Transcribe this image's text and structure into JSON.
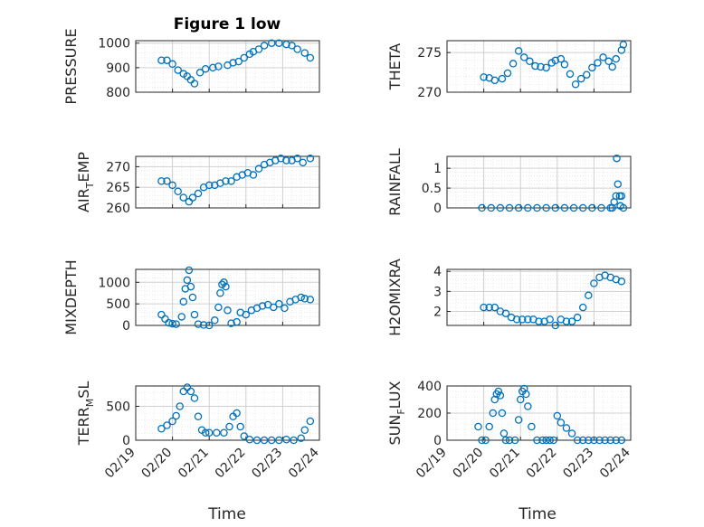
{
  "figure": {
    "title": "Figure 1 low"
  },
  "colors": {
    "marker": "#0072BD",
    "axis": "#262626",
    "grid": "#d0d0d0",
    "minor_grid": "#e6e6e6"
  },
  "chart_data": [
    {
      "type": "scatter",
      "ylabel": "PRESSURE",
      "yticks": [
        "800",
        "900",
        "1000"
      ],
      "ylim": [
        800,
        1010
      ],
      "xlim": [
        "02/19",
        "02/24"
      ],
      "xticks": [
        "02/19",
        "02/20",
        "02/21",
        "02/22",
        "02/23",
        "02/24"
      ],
      "grid": true,
      "x_days": [
        19.7,
        19.85,
        20.0,
        20.15,
        20.3,
        20.4,
        20.5,
        20.6,
        20.75,
        20.9,
        21.1,
        21.25,
        21.5,
        21.65,
        21.8,
        21.95,
        22.1,
        22.2,
        22.35,
        22.5,
        22.7,
        22.9,
        23.1,
        23.25,
        23.4,
        23.6,
        23.75
      ],
      "y": [
        930,
        930,
        915,
        890,
        875,
        865,
        850,
        835,
        880,
        895,
        900,
        905,
        910,
        920,
        925,
        940,
        955,
        965,
        975,
        990,
        1000,
        1000,
        995,
        990,
        975,
        960,
        940
      ]
    },
    {
      "type": "scatter",
      "ylabel": "THETA",
      "yticks": [
        "270",
        "275"
      ],
      "ylim": [
        270,
        276.5
      ],
      "xlim": [
        "02/19",
        "02/24"
      ],
      "xticks": [
        "02/19",
        "02/20",
        "02/21",
        "02/22",
        "02/23",
        "02/24"
      ],
      "grid": true,
      "x_days": [
        20.0,
        20.15,
        20.3,
        20.5,
        20.65,
        20.8,
        20.95,
        21.1,
        21.25,
        21.4,
        21.55,
        21.7,
        21.85,
        21.95,
        22.1,
        22.2,
        22.35,
        22.5,
        22.65,
        22.8,
        22.95,
        23.1,
        23.25,
        23.4,
        23.5,
        23.6,
        23.75,
        23.8
      ],
      "y": [
        271.9,
        271.8,
        271.5,
        271.7,
        272.4,
        273.6,
        275.2,
        274.4,
        273.9,
        273.3,
        273.2,
        273.1,
        273.7,
        274.0,
        274.2,
        273.5,
        272.3,
        271.0,
        271.7,
        272.2,
        273.1,
        273.7,
        274.4,
        273.9,
        273.2,
        274.2,
        275.3,
        276.0
      ]
    },
    {
      "type": "scatter",
      "ylabel": "AIR",
      "ylabel_sub": "T",
      "ylabel_rest": "EMP",
      "yticks": [
        "260",
        "265",
        "270"
      ],
      "ylim": [
        260,
        272.5
      ],
      "xlim": [
        "02/19",
        "02/24"
      ],
      "xticks": [
        "02/19",
        "02/20",
        "02/21",
        "02/22",
        "02/23",
        "02/24"
      ],
      "grid": true,
      "x_days": [
        19.7,
        19.85,
        20.0,
        20.15,
        20.3,
        20.45,
        20.55,
        20.7,
        20.85,
        21.0,
        21.15,
        21.3,
        21.45,
        21.6,
        21.75,
        21.9,
        22.05,
        22.2,
        22.35,
        22.5,
        22.65,
        22.8,
        22.95,
        23.1,
        23.25,
        23.4,
        23.55,
        23.75
      ],
      "y": [
        266.5,
        266.5,
        265.5,
        264.0,
        262.5,
        261.5,
        262.5,
        263.5,
        265.0,
        265.5,
        265.5,
        266.0,
        266.5,
        266.5,
        267.5,
        268.0,
        268.5,
        268.0,
        269.5,
        270.5,
        271.0,
        271.5,
        272.0,
        271.5,
        271.5,
        272.0,
        271.0,
        272.0
      ]
    },
    {
      "type": "scatter",
      "ylabel": "RAINFALL",
      "yticks": [
        "0",
        "0.5",
        "1"
      ],
      "ylim": [
        0,
        1.3
      ],
      "xlim": [
        "02/19",
        "02/24"
      ],
      "xticks": [
        "02/19",
        "02/20",
        "02/21",
        "02/22",
        "02/23",
        "02/24"
      ],
      "grid": true,
      "x_days": [
        19.95,
        20.2,
        20.45,
        20.7,
        20.95,
        21.2,
        21.45,
        21.7,
        21.95,
        22.2,
        22.45,
        22.7,
        22.95,
        23.2,
        23.45,
        23.5,
        23.55,
        23.6,
        23.62,
        23.65,
        23.7,
        23.72,
        23.75,
        23.8
      ],
      "y": [
        0,
        0,
        0,
        0,
        0,
        0,
        0,
        0,
        0,
        0,
        0,
        0,
        0,
        0,
        0,
        0,
        0.15,
        0.3,
        1.25,
        0.6,
        0.3,
        0.05,
        0.3,
        0
      ]
    },
    {
      "type": "scatter",
      "ylabel": "MIXDEPTH",
      "yticks": [
        "0",
        "500",
        "1000"
      ],
      "ylim": [
        0,
        1300
      ],
      "xlim": [
        "02/19",
        "02/24"
      ],
      "xticks": [
        "02/19",
        "02/20",
        "02/21",
        "02/22",
        "02/23",
        "02/24"
      ],
      "grid": true,
      "x_days": [
        19.7,
        19.8,
        19.9,
        20.0,
        20.1,
        20.25,
        20.3,
        20.35,
        20.4,
        20.45,
        20.5,
        20.55,
        20.6,
        20.7,
        20.85,
        21.0,
        21.15,
        21.25,
        21.3,
        21.35,
        21.4,
        21.45,
        21.5,
        21.6,
        21.75,
        21.85,
        22.0,
        22.15,
        22.3,
        22.45,
        22.6,
        22.75,
        22.9,
        23.05,
        23.2,
        23.35,
        23.5,
        23.6,
        23.75
      ],
      "y": [
        250,
        150,
        60,
        40,
        30,
        200,
        550,
        850,
        1050,
        1280,
        900,
        650,
        250,
        30,
        10,
        0,
        120,
        420,
        750,
        950,
        1000,
        900,
        350,
        50,
        80,
        300,
        250,
        350,
        400,
        450,
        480,
        420,
        500,
        400,
        550,
        600,
        650,
        620,
        600
      ]
    },
    {
      "type": "scatter",
      "ylabel": "H2OMIXRA",
      "yticks": [
        "2",
        "3",
        "4"
      ],
      "ylim": [
        1.3,
        4.1
      ],
      "xlim": [
        "02/19",
        "02/24"
      ],
      "xticks": [
        "02/19",
        "02/20",
        "02/21",
        "02/22",
        "02/23",
        "02/24"
      ],
      "grid": true,
      "x_days": [
        20.0,
        20.15,
        20.3,
        20.45,
        20.6,
        20.75,
        20.9,
        21.05,
        21.2,
        21.35,
        21.5,
        21.65,
        21.8,
        21.95,
        22.1,
        22.25,
        22.4,
        22.55,
        22.7,
        22.85,
        23.0,
        23.15,
        23.3,
        23.45,
        23.6,
        23.75
      ],
      "y": [
        2.2,
        2.2,
        2.2,
        2.0,
        1.9,
        1.7,
        1.6,
        1.6,
        1.6,
        1.6,
        1.5,
        1.5,
        1.6,
        1.3,
        1.6,
        1.5,
        1.5,
        1.7,
        2.2,
        2.8,
        3.4,
        3.7,
        3.8,
        3.7,
        3.6,
        3.5
      ]
    },
    {
      "type": "scatter",
      "ylabel": "TERR",
      "ylabel_sub": "M",
      "ylabel_rest": "SL",
      "yticks": [
        "0",
        "500"
      ],
      "ylim": [
        0,
        800
      ],
      "xlim": [
        "02/19",
        "02/24"
      ],
      "xticks": [
        "02/19",
        "02/20",
        "02/21",
        "02/22",
        "02/23",
        "02/24"
      ],
      "grid": true,
      "x_days": [
        19.7,
        19.85,
        20.0,
        20.1,
        20.2,
        20.3,
        20.4,
        20.5,
        20.6,
        20.7,
        20.8,
        20.9,
        21.0,
        21.2,
        21.4,
        21.55,
        21.65,
        21.75,
        21.85,
        21.95,
        22.1,
        22.3,
        22.5,
        22.7,
        22.9,
        23.1,
        23.3,
        23.5,
        23.6,
        23.75
      ],
      "y": [
        170,
        220,
        280,
        360,
        500,
        720,
        780,
        720,
        620,
        350,
        150,
        110,
        110,
        110,
        110,
        200,
        350,
        400,
        200,
        60,
        10,
        0,
        0,
        0,
        0,
        10,
        0,
        30,
        150,
        280
      ]
    },
    {
      "type": "scatter",
      "ylabel": "SUN",
      "ylabel_sub": "F",
      "ylabel_rest": "LUX",
      "yticks": [
        "0",
        "200",
        "400"
      ],
      "ylim": [
        0,
        400
      ],
      "xlim": [
        "02/19",
        "02/24"
      ],
      "xticks": [
        "02/19",
        "02/20",
        "02/21",
        "02/22",
        "02/23",
        "02/24"
      ],
      "grid": true,
      "x_days": [
        19.85,
        19.95,
        20.05,
        20.15,
        20.25,
        20.3,
        20.35,
        20.4,
        20.45,
        20.5,
        20.55,
        20.6,
        20.7,
        20.85,
        20.95,
        21.0,
        21.05,
        21.1,
        21.15,
        21.2,
        21.3,
        21.45,
        21.6,
        21.7,
        21.8,
        21.9,
        22.0,
        22.1,
        22.25,
        22.4,
        22.55,
        22.7,
        22.85,
        23.0,
        23.15,
        23.3,
        23.45,
        23.6,
        23.75
      ],
      "y": [
        100,
        0,
        0,
        100,
        200,
        300,
        340,
        360,
        330,
        200,
        50,
        0,
        0,
        0,
        150,
        300,
        360,
        380,
        340,
        250,
        100,
        0,
        0,
        0,
        0,
        0,
        180,
        130,
        90,
        50,
        0,
        0,
        0,
        0,
        0,
        0,
        0,
        0,
        0
      ]
    }
  ],
  "xaxis": {
    "label": "Time"
  }
}
